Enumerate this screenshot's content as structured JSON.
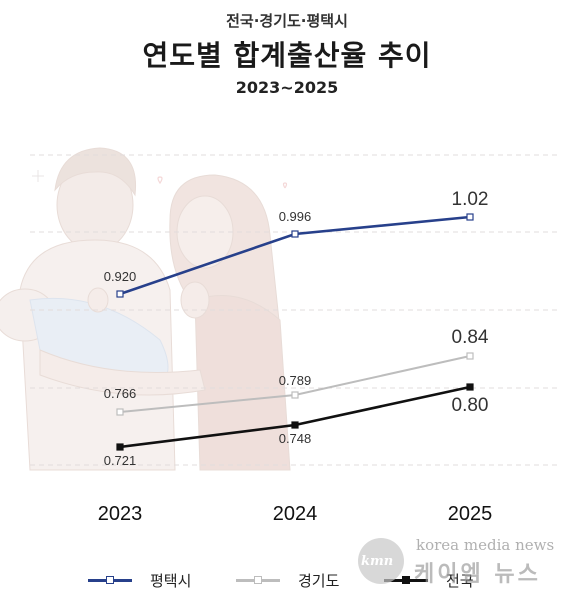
{
  "header": {
    "supertitle": "전국·경기도·평택시",
    "title": "연도별 합계출산율 추이",
    "subtitle": "2023~2025"
  },
  "colors": {
    "pyeongtaek": "#27408b",
    "gyeonggi": "#bdbdbd",
    "national": "#111111"
  },
  "chart_data": {
    "type": "line",
    "categories": [
      "2023",
      "2024",
      "2025"
    ],
    "series": [
      {
        "name": "평택시",
        "values": [
          0.92,
          0.996,
          1.02
        ],
        "labels": [
          "0.920",
          "0.996",
          "1.02"
        ]
      },
      {
        "name": "경기도",
        "values": [
          0.766,
          0.789,
          0.84
        ],
        "labels": [
          "0.766",
          "0.789",
          "0.84"
        ]
      },
      {
        "name": "전국",
        "values": [
          0.721,
          0.748,
          0.8
        ],
        "labels": [
          "0.721",
          "0.748",
          "0.80"
        ]
      }
    ],
    "legend": "bottom",
    "grid": true
  },
  "legend": {
    "pyeongtaek": "평택시",
    "gyeonggi": "경기도",
    "national": "전국"
  },
  "watermark": {
    "logo": "kmn",
    "english": "korea media news",
    "korean": "케이엠 뉴스"
  }
}
